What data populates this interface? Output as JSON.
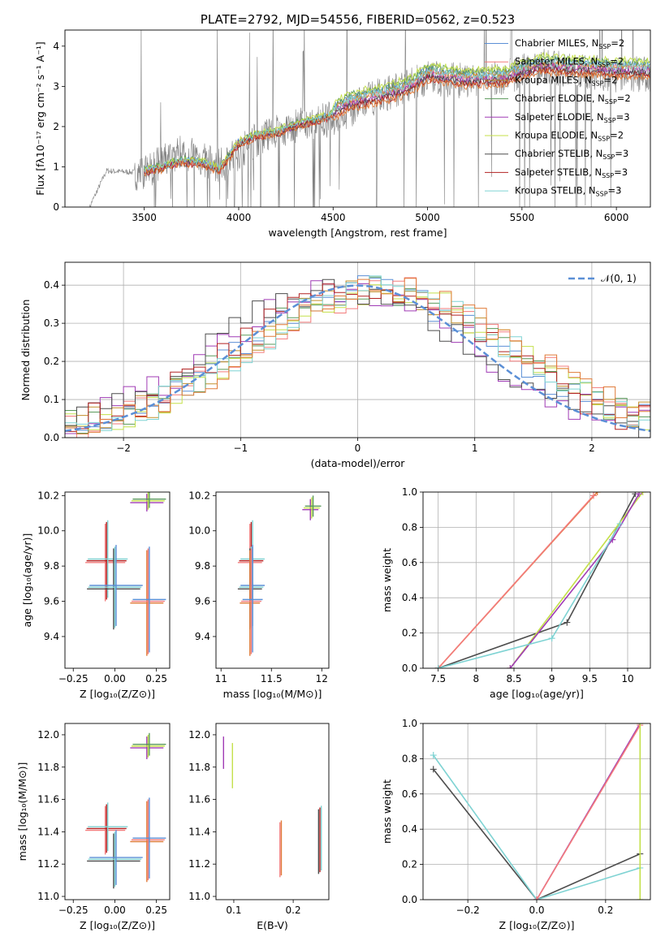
{
  "chart_data": [
    {
      "type": "line",
      "title": "PLATE=2792, MJD=54556, FIBERID=0562, z=0.523",
      "xlabel": "wavelength [Angstrom, rest frame]",
      "ylabel": "Flux [fλ10⁻¹⁷ erg cm⁻² s⁻¹ A⁻¹]",
      "xlim": [
        3080,
        6180
      ],
      "ylim": [
        0,
        4.4
      ],
      "xticks": [
        3500,
        4000,
        4500,
        5000,
        5500,
        6000
      ],
      "yticks": [
        0,
        1,
        2,
        3,
        4
      ],
      "legend_position": "top-right",
      "legend": [
        "Chabrier MILES, N_SSP=2",
        "Salpeter MILES, N_SSP=2",
        "Kroupa MILES, N_SSP=2",
        "Chabrier ELODIE, N_SSP=2",
        "Salpeter ELODIE, N_SSP=3",
        "Kroupa ELODIE, N_SSP=2",
        "Chabrier STELIB, N_SSP=3",
        "Salpeter STELIB, N_SSP=3",
        "Kroupa STELIB, N_SSP=3"
      ],
      "data_trace": {
        "x": [
          3210,
          3300,
          3500,
          3700,
          3900,
          4100,
          4300,
          4500,
          4700,
          5000,
          5300,
          5600,
          6000
        ],
        "y": [
          0,
          0.9,
          0.85,
          1.4,
          1.0,
          1.7,
          2.0,
          2.2,
          2.7,
          3.2,
          3.1,
          3.5,
          3.3
        ]
      },
      "model_series": {
        "x": [
          3210,
          3260,
          3300,
          3400,
          3500,
          3600,
          3700,
          3800,
          3900,
          4000,
          4100,
          4200,
          4300,
          4400,
          4500,
          4600,
          4700,
          4800,
          4900,
          5000,
          5200,
          5400,
          5600,
          5800,
          6000
        ],
        "y": [
          0.6,
          0.9,
          0.95,
          0.9,
          0.85,
          0.95,
          1.1,
          1.05,
          0.9,
          1.55,
          1.75,
          1.8,
          2.0,
          2.1,
          2.25,
          2.5,
          2.6,
          2.7,
          2.85,
          3.2,
          3.05,
          3.1,
          3.4,
          3.35,
          3.3
        ]
      },
      "colors": [
        "#5b8fd6",
        "#f37b7b",
        "#c28f2b",
        "#5a9a5a",
        "#a03bb5",
        "#c4e04a",
        "#4d4d4d",
        "#b22222",
        "#7fd3d3",
        "#e07b39",
        "#808080"
      ]
    },
    {
      "type": "line",
      "xlabel": "(data-model)/error",
      "ylabel": "Normed distribution",
      "xlim": [
        -2.5,
        2.5
      ],
      "ylim": [
        0,
        0.46
      ],
      "xticks": [
        -2,
        -1,
        0,
        1,
        2
      ],
      "yticks": [
        0.0,
        0.1,
        0.2,
        0.3,
        0.4
      ],
      "legend": [
        "𝒩(0, 1)"
      ],
      "legend_position": "top-right",
      "grid": true,
      "hist_step_x": [
        -2.5,
        -2.25,
        -2.0,
        -1.75,
        -1.5,
        -1.25,
        -1.0,
        -0.75,
        -0.5,
        -0.25,
        0.0,
        0.25,
        0.5,
        0.75,
        1.0,
        1.25,
        1.5,
        1.75,
        2.0,
        2.25,
        2.5
      ],
      "hist_series": [
        {
          "values": [
            0.02,
            0.03,
            0.05,
            0.1,
            0.15,
            0.2,
            0.27,
            0.3,
            0.33,
            0.4,
            0.38,
            0.37,
            0.35,
            0.3,
            0.25,
            0.18,
            0.12,
            0.09,
            0.07,
            0.05
          ]
        },
        {
          "values": [
            0.02,
            0.04,
            0.04,
            0.09,
            0.17,
            0.18,
            0.2,
            0.26,
            0.3,
            0.33,
            0.4,
            0.36,
            0.35,
            0.32,
            0.24,
            0.19,
            0.14,
            0.1,
            0.06,
            0.06
          ]
        },
        {
          "values": [
            0.01,
            0.02,
            0.04,
            0.06,
            0.12,
            0.15,
            0.18,
            0.24,
            0.31,
            0.35,
            0.37,
            0.33,
            0.34,
            0.29,
            0.28,
            0.2,
            0.15,
            0.12,
            0.08,
            0.07
          ]
        }
      ],
      "normal_curve": {
        "mu": 0,
        "sigma": 1,
        "peak": 0.399
      }
    },
    {
      "type": "scatter",
      "xlabel": "Z [log₁₀(Z/Z⊙)]",
      "ylabel": "age  [log₁₀(age/yr)]",
      "xlim": [
        -0.3,
        0.33
      ],
      "ylim": [
        9.22,
        10.22
      ],
      "xticks": [
        -0.25,
        0.0,
        0.25
      ],
      "xtick_labels": [
        "−0.25",
        "0.00",
        "0.25"
      ],
      "yticks": [
        9.4,
        9.6,
        9.8,
        10.0,
        10.2
      ],
      "points": [
        {
          "x": -0.05,
          "y": 9.83,
          "xerr": 0.12,
          "yerr": 0.22
        },
        {
          "x": 0.0,
          "y": 9.68,
          "xerr": 0.16,
          "yerr": 0.23
        },
        {
          "x": 0.2,
          "y": 9.6,
          "xerr": 0.1,
          "yerr": 0.3
        },
        {
          "x": 0.2,
          "y": 10.17,
          "xerr": 0.1,
          "yerr": 0.05
        }
      ]
    },
    {
      "type": "scatter",
      "xlabel": "mass [log₁₀(M/M⊙)]",
      "xlim": [
        10.95,
        12.07
      ],
      "ylim": [
        9.22,
        10.22
      ],
      "xticks": [
        11.0,
        11.5,
        12.0
      ],
      "yticks": [
        9.4,
        9.6,
        9.8,
        10.0,
        10.2
      ],
      "points": [
        {
          "x": 11.3,
          "y": 9.83,
          "xerr": 0.12,
          "yerr": 0.22
        },
        {
          "x": 11.3,
          "y": 9.68,
          "xerr": 0.12,
          "yerr": 0.23
        },
        {
          "x": 11.3,
          "y": 9.6,
          "xerr": 0.1,
          "yerr": 0.3
        },
        {
          "x": 11.9,
          "y": 10.13,
          "xerr": 0.08,
          "yerr": 0.06
        }
      ]
    },
    {
      "type": "line",
      "xlabel": "age  [log₁₀(age/yr)]",
      "ylabel": "mass weight",
      "xlim": [
        7.3,
        10.3
      ],
      "ylim": [
        0,
        1
      ],
      "xticks": [
        7.5,
        8.0,
        8.5,
        9.0,
        9.5,
        10.0
      ],
      "yticks": [
        0.0,
        0.2,
        0.4,
        0.6,
        0.8,
        1.0
      ],
      "grid": true,
      "series": [
        {
          "x": [
            7.5,
            9.6
          ],
          "y": [
            0.0,
            1.0
          ]
        },
        {
          "x": [
            7.5,
            9.55
          ],
          "y": [
            0.0,
            0.98
          ]
        },
        {
          "x": [
            7.5,
            9.2,
            10.1
          ],
          "y": [
            0.0,
            0.26,
            0.99
          ]
        },
        {
          "x": [
            8.45,
            10.2
          ],
          "y": [
            0.0,
            1.0
          ]
        },
        {
          "x": [
            8.45,
            9.8,
            10.15
          ],
          "y": [
            0.0,
            0.73,
            0.99
          ]
        },
        {
          "x": [
            7.5,
            9.0,
            9.9
          ],
          "y": [
            0.0,
            0.17,
            0.82
          ]
        }
      ]
    },
    {
      "type": "scatter",
      "xlabel": "Z [log₁₀(Z/Z⊙)]",
      "ylabel": "mass [log₁₀(M/M⊙)]",
      "xlim": [
        -0.3,
        0.33
      ],
      "ylim": [
        10.98,
        12.07
      ],
      "xticks": [
        -0.25,
        0.0,
        0.25
      ],
      "xtick_labels": [
        "−0.25",
        "0.00",
        "0.25"
      ],
      "yticks": [
        11.0,
        11.2,
        11.4,
        11.6,
        11.8,
        12.0
      ],
      "points": [
        {
          "x": -0.05,
          "y": 11.42,
          "xerr": 0.12,
          "yerr": 0.15
        },
        {
          "x": 0.0,
          "y": 11.23,
          "xerr": 0.16,
          "yerr": 0.17
        },
        {
          "x": 0.2,
          "y": 11.35,
          "xerr": 0.1,
          "yerr": 0.25
        },
        {
          "x": 0.2,
          "y": 11.93,
          "xerr": 0.1,
          "yerr": 0.07
        }
      ]
    },
    {
      "type": "scatter",
      "xlabel": "E(B-V)",
      "xlim": [
        0.07,
        0.26
      ],
      "ylim": [
        10.98,
        12.07
      ],
      "xticks": [
        0.1,
        0.2
      ],
      "yticks": [
        11.0,
        11.2,
        11.4,
        11.6,
        11.8,
        12.0
      ],
      "points": [
        {
          "x": 0.085,
          "y": 11.9,
          "yerr": 0.1
        },
        {
          "x": 0.1,
          "y": 11.82,
          "yerr": 0.14
        },
        {
          "x": 0.18,
          "y": 11.3,
          "yerr": 0.17
        },
        {
          "x": 0.245,
          "y": 11.35,
          "yerr": 0.2
        }
      ]
    },
    {
      "type": "line",
      "xlabel": "Z [log₁₀(Z/Z⊙)]",
      "ylabel": "mass weight",
      "xlim": [
        -0.33,
        0.33
      ],
      "ylim": [
        0,
        1
      ],
      "xticks": [
        -0.2,
        0.0,
        0.2
      ],
      "xtick_labels": [
        "−0.2",
        "0.0",
        "0.2"
      ],
      "yticks": [
        0.0,
        0.2,
        0.4,
        0.6,
        0.8,
        1.0
      ],
      "grid": true,
      "series": [
        {
          "x": [
            -0.3,
            0.0,
            0.3
          ],
          "y": [
            0.74,
            0.0,
            0.26
          ]
        },
        {
          "x": [
            -0.3,
            0.0,
            0.3
          ],
          "y": [
            0.82,
            0.0,
            0.18
          ]
        },
        {
          "x": [
            0.0,
            0.3
          ],
          "y": [
            0.0,
            1.0
          ]
        },
        {
          "x": [
            0.0,
            0.3
          ],
          "y": [
            0.0,
            0.99
          ]
        },
        {
          "x": [
            0.3,
            0.3
          ],
          "y": [
            0.0,
            1.0
          ]
        }
      ]
    }
  ]
}
